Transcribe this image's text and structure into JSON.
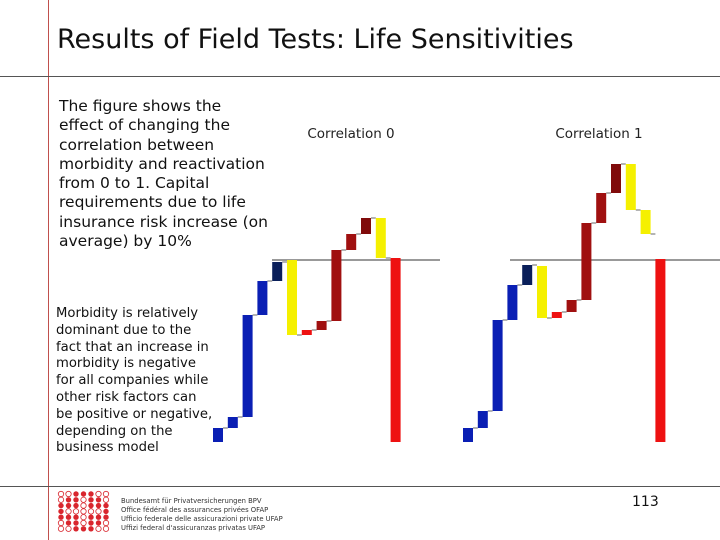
{
  "slide": {
    "title": "Results of Field Tests: Life Sensitivities",
    "description": "The figure shows the effect of changing the correlation between morbidity and reactivation from 0 to 1. Capital requirements due to life insurance risk increase (on average) by 10%",
    "note": "Morbidity is relatively dominant due to the fact that an increase in morbidity is negative for all companies while other risk factors can be positive or negative, depending on the business model",
    "page_number": "113"
  },
  "footer": {
    "org_lines": [
      "Bundesamt für Privatversicherungen BPV",
      "Office fédéral des assurances privées OFAP",
      "Ufficio federale delle assicurazioni private UFAP",
      "Uffizi federal d'assicuranzas privatas UFAP"
    ],
    "logo_color": "#d9262e"
  },
  "chart_data": [
    {
      "type": "bar",
      "subtype": "waterfall",
      "title": "Correlation 0",
      "baseline_value": 0,
      "colors": {
        "blue": "#0a1fb4",
        "navy": "#0a1f5a",
        "yellow": "#f5f000",
        "red": "#ee1111",
        "dark_red": "#a01010",
        "maroon": "#800b0b"
      },
      "segments": [
        {
          "start": -18.2,
          "end": -16.8,
          "color": "blue"
        },
        {
          "start": -16.8,
          "end": -15.7,
          "color": "blue"
        },
        {
          "start": -15.7,
          "end": -5.5,
          "color": "blue"
        },
        {
          "start": -5.5,
          "end": -2.1,
          "color": "blue"
        },
        {
          "start": -2.1,
          "end": -0.2,
          "color": "navy"
        },
        {
          "start": 0,
          "end": -7.5,
          "color": "yellow"
        },
        {
          "start": -7.5,
          "end": -7.0,
          "color": "red"
        },
        {
          "start": -7.0,
          "end": -6.1,
          "color": "dark_red"
        },
        {
          "start": -6.1,
          "end": 1.0,
          "color": "dark_red"
        },
        {
          "start": 1.0,
          "end": 2.6,
          "color": "dark_red"
        },
        {
          "start": 2.6,
          "end": 4.2,
          "color": "maroon"
        },
        {
          "start": 4.2,
          "end": 0.2,
          "color": "yellow"
        },
        {
          "start": 0.2,
          "end": -18.2,
          "color": "red"
        }
      ]
    },
    {
      "type": "bar",
      "subtype": "waterfall",
      "title": "Correlation 1",
      "baseline_value": 0,
      "colors": {
        "blue": "#0a1fb4",
        "navy": "#0a1f5a",
        "yellow": "#f5f000",
        "red": "#ee1111",
        "dark_red": "#a01010",
        "maroon": "#800b0b"
      },
      "segments": [
        {
          "start": -18.2,
          "end": -16.8,
          "color": "blue"
        },
        {
          "start": -16.8,
          "end": -15.1,
          "color": "blue"
        },
        {
          "start": -15.1,
          "end": -6.0,
          "color": "blue"
        },
        {
          "start": -6.0,
          "end": -2.5,
          "color": "blue"
        },
        {
          "start": -2.5,
          "end": -0.5,
          "color": "navy"
        },
        {
          "start": -0.6,
          "end": -5.8,
          "color": "yellow"
        },
        {
          "start": -5.8,
          "end": -5.2,
          "color": "red"
        },
        {
          "start": -5.2,
          "end": -4.0,
          "color": "dark_red"
        },
        {
          "start": -4.0,
          "end": 3.7,
          "color": "dark_red"
        },
        {
          "start": 3.7,
          "end": 6.7,
          "color": "dark_red"
        },
        {
          "start": 6.7,
          "end": 9.6,
          "color": "maroon"
        },
        {
          "start": 9.6,
          "end": 5.0,
          "color": "yellow"
        },
        {
          "start": 5.0,
          "end": 2.6,
          "color": "yellow"
        },
        {
          "start": 0.1,
          "end": -18.2,
          "color": "red"
        }
      ]
    }
  ]
}
